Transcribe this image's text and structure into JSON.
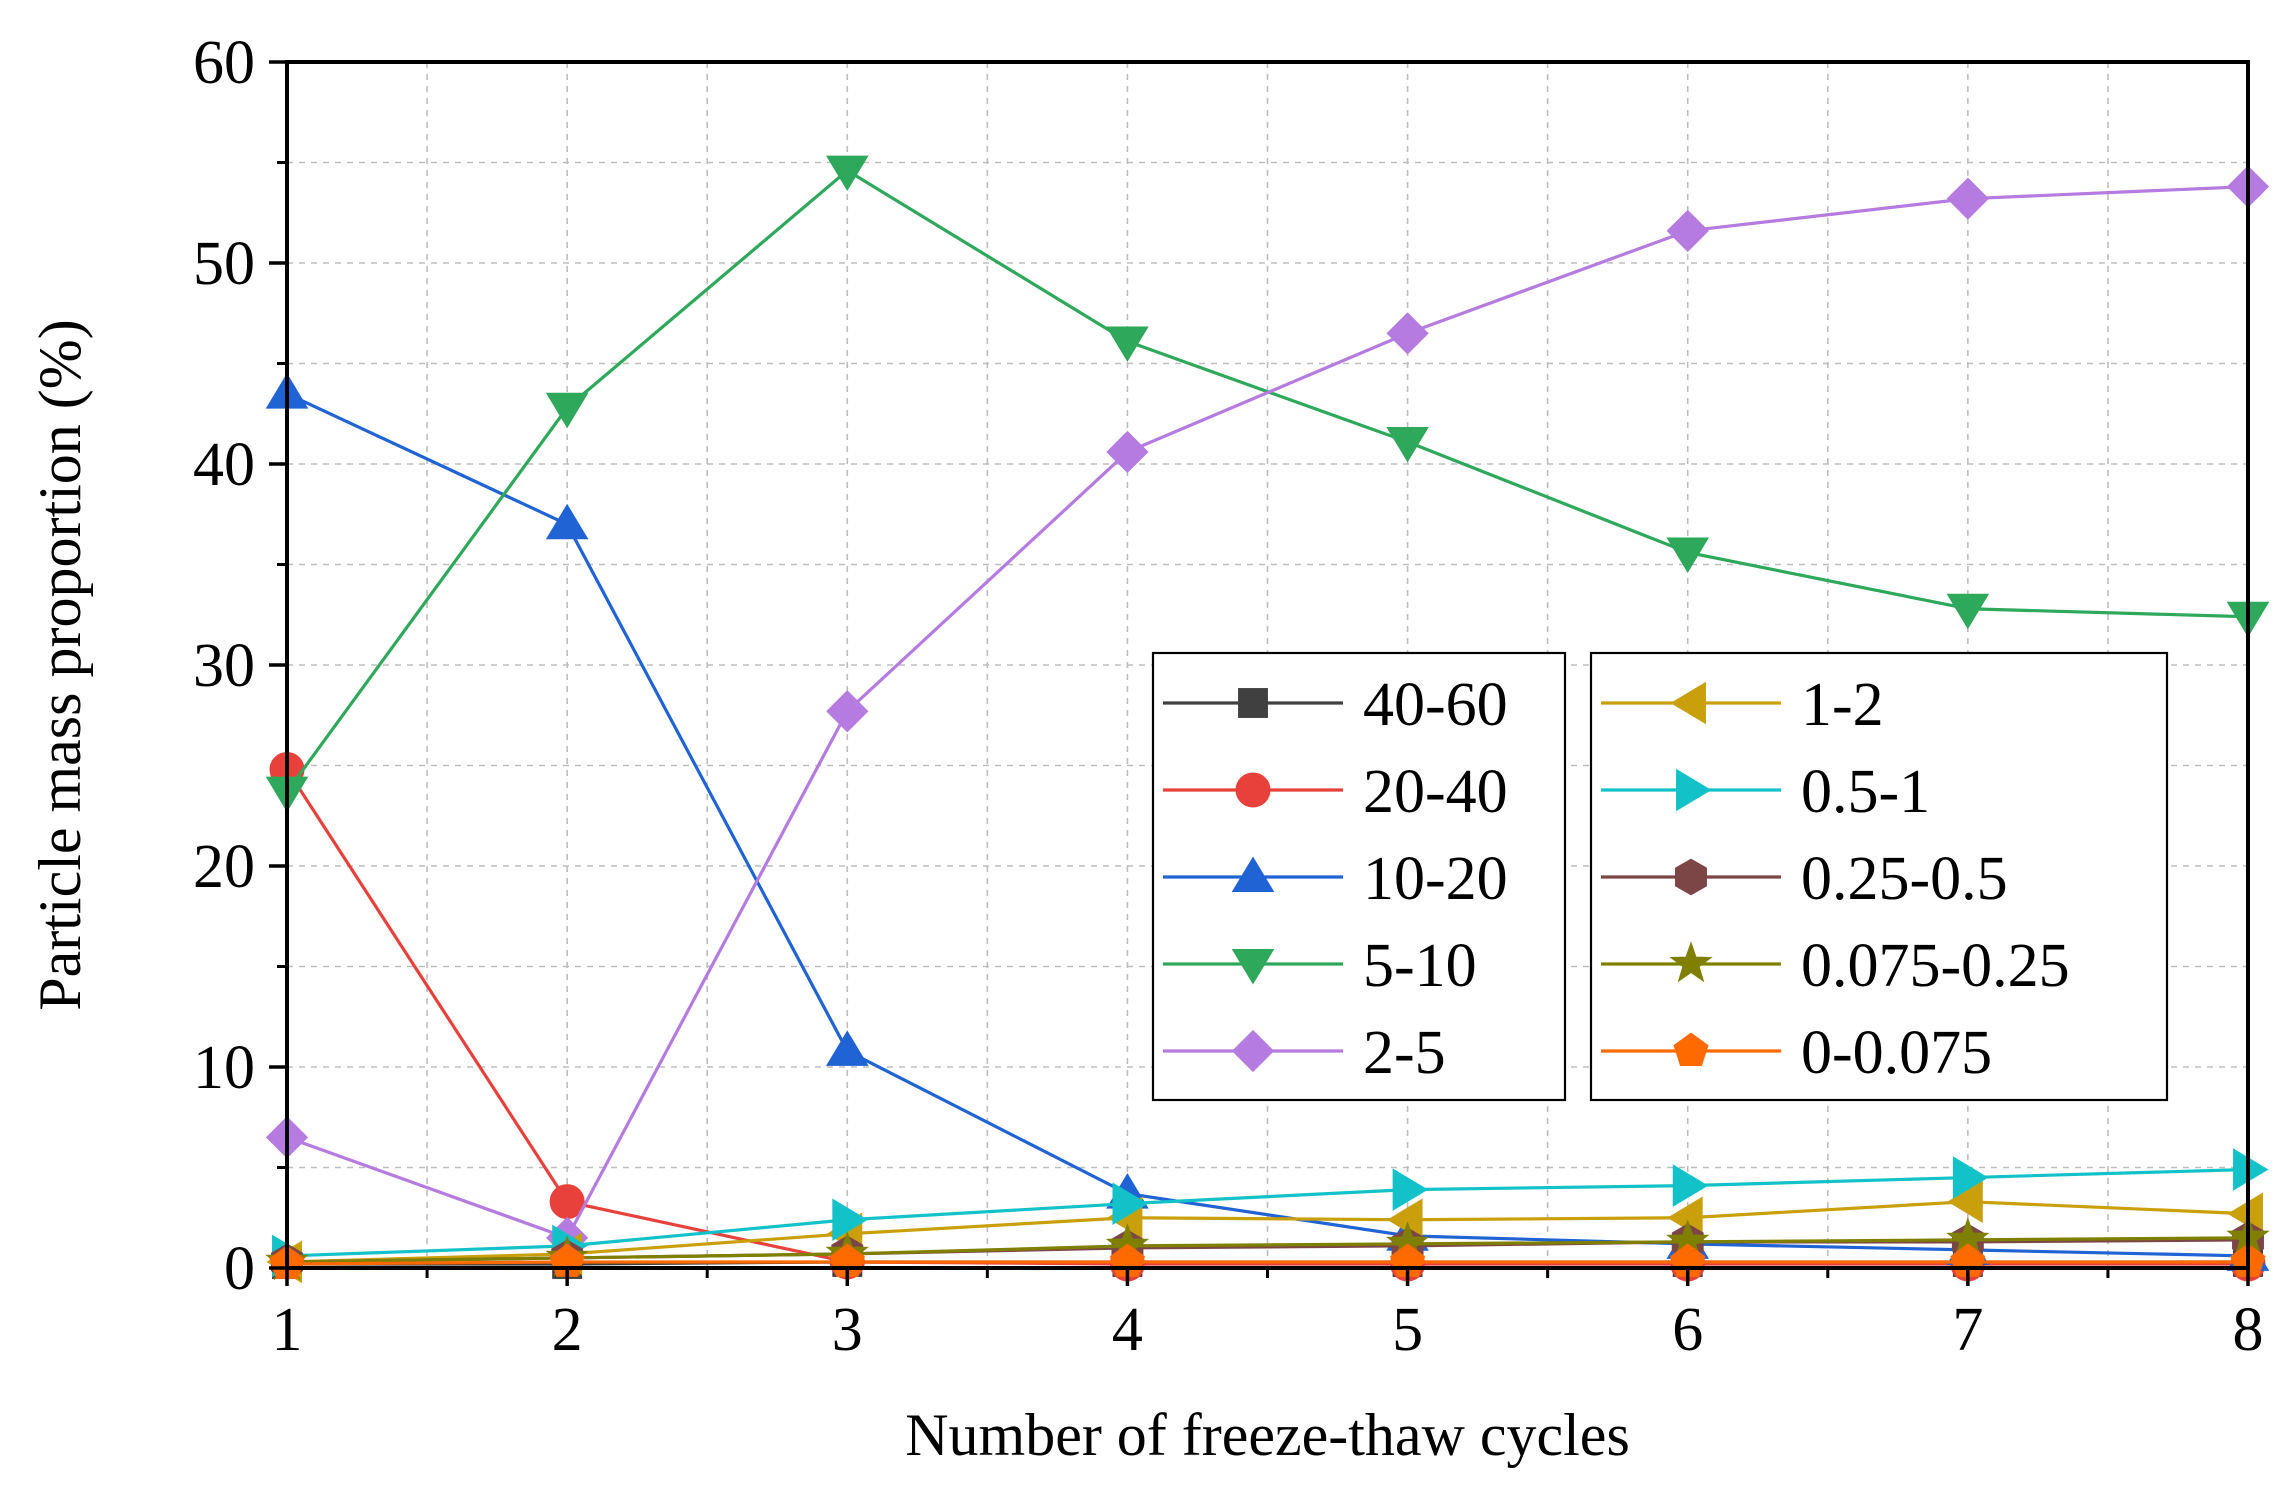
{
  "chart_data": {
    "type": "line",
    "title": "",
    "xlabel": "Number of freeze-thaw cycles",
    "ylabel": "Particle mass proportion (%)",
    "x": [
      1,
      2,
      3,
      4,
      5,
      6,
      7,
      8
    ],
    "x_ticks": [
      "1",
      "2",
      "3",
      "4",
      "5",
      "6",
      "7",
      "8"
    ],
    "y_ticks": [
      "0",
      "10",
      "20",
      "30",
      "40",
      "50",
      "60"
    ],
    "xlim": [
      1,
      8
    ],
    "ylim": [
      0,
      60
    ],
    "grid": true,
    "legend_position": "center-right",
    "series": [
      {
        "name": "40-60",
        "color": "#404040",
        "marker": "square",
        "values": [
          0.2,
          0.2,
          0.3,
          0.3,
          0.3,
          0.3,
          0.3,
          0.3
        ]
      },
      {
        "name": "20-40",
        "color": "#e8413b",
        "marker": "circle",
        "values": [
          24.8,
          3.3,
          0.3,
          0.2,
          0.2,
          0.2,
          0.2,
          0.2
        ]
      },
      {
        "name": "10-20",
        "color": "#1f63d4",
        "marker": "triangle-up",
        "values": [
          43.5,
          37.0,
          10.8,
          3.7,
          1.6,
          1.2,
          0.9,
          0.6
        ]
      },
      {
        "name": "5-10",
        "color": "#2ea85a",
        "marker": "triangle-down",
        "values": [
          23.7,
          42.8,
          54.6,
          46.1,
          41.1,
          35.6,
          32.8,
          32.4
        ]
      },
      {
        "name": "2-5",
        "color": "#b57be0",
        "marker": "diamond",
        "values": [
          6.5,
          1.5,
          27.7,
          40.6,
          46.5,
          51.6,
          53.2,
          53.8
        ]
      },
      {
        "name": "1-2",
        "color": "#c9a00c",
        "marker": "triangle-left",
        "values": [
          0.3,
          0.7,
          1.7,
          2.5,
          2.4,
          2.5,
          3.3,
          2.7
        ]
      },
      {
        "name": "0.5-1",
        "color": "#13c2c8",
        "marker": "triangle-right",
        "values": [
          0.6,
          1.1,
          2.4,
          3.2,
          3.9,
          4.1,
          4.5,
          4.9
        ]
      },
      {
        "name": "0.25-0.5",
        "color": "#7d4646",
        "marker": "hexagon",
        "values": [
          0.3,
          0.5,
          0.7,
          1.0,
          1.1,
          1.3,
          1.3,
          1.4
        ]
      },
      {
        "name": "0.075-0.25",
        "color": "#808000",
        "marker": "star",
        "values": [
          0.3,
          0.5,
          0.7,
          1.1,
          1.2,
          1.3,
          1.4,
          1.5
        ]
      },
      {
        "name": "0-0.075",
        "color": "#ff6a00",
        "marker": "pentagon",
        "values": [
          0.2,
          0.3,
          0.3,
          0.3,
          0.3,
          0.3,
          0.3,
          0.3
        ]
      }
    ]
  }
}
